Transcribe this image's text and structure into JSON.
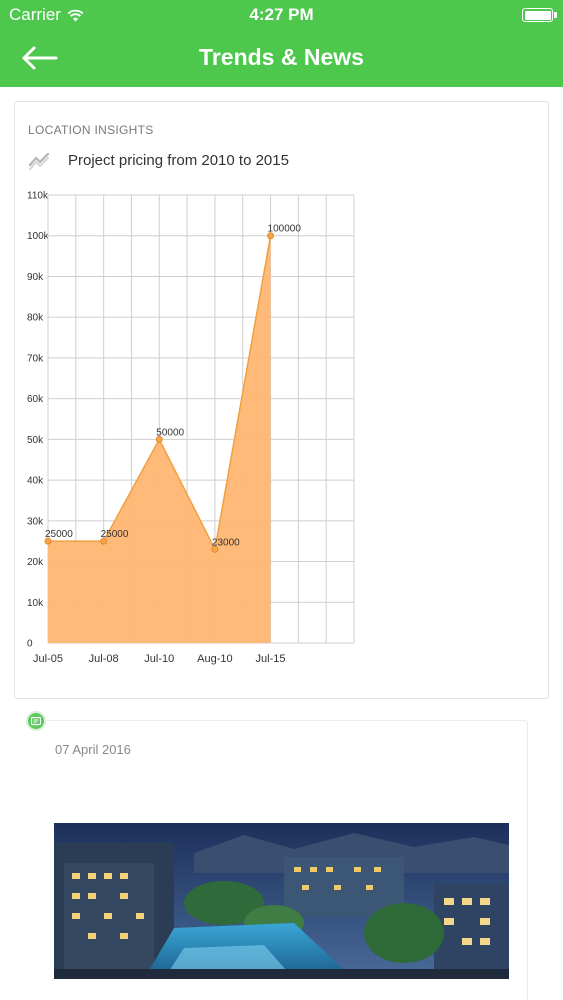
{
  "status_bar": {
    "carrier": "Carrier",
    "time": "4:27 PM",
    "wifi_icon": "wifi-icon",
    "battery_icon": "battery-icon"
  },
  "nav": {
    "title": "Trends & News",
    "back_icon": "arrow-left-icon"
  },
  "insights": {
    "section_label": "LOCATION INSIGHTS",
    "chart_icon": "trend-icon",
    "chart_title": "Project pricing from 2010 to 2015"
  },
  "chart_data": {
    "type": "area",
    "title": "Project pricing from 2010 to 2015",
    "categories": [
      "Jul-05",
      "Jul-08",
      "Jul-10",
      "Aug-10",
      "Jul-15"
    ],
    "values": [
      25000,
      25000,
      50000,
      23000,
      100000
    ],
    "data_labels": [
      "25000",
      "25000",
      "50000",
      "23000",
      "100000"
    ],
    "y_ticks": [
      "0",
      "10k",
      "20k",
      "30k",
      "40k",
      "50k",
      "60k",
      "70k",
      "80k",
      "90k",
      "100k",
      "110k"
    ],
    "ylim": [
      0,
      110000
    ],
    "grid": true,
    "xlabel": "",
    "ylabel": "",
    "colors": {
      "fill": "#ffb672",
      "line": "#f0a040",
      "point": "#f7a545",
      "grid": "#cfcfcf"
    }
  },
  "news": {
    "date": "07 April 2016",
    "icon": "news-icon",
    "image_alt": "residential-complex-photo"
  },
  "colors": {
    "brand_green": "#4dc84d",
    "timeline_dot": "#5ec95e"
  }
}
